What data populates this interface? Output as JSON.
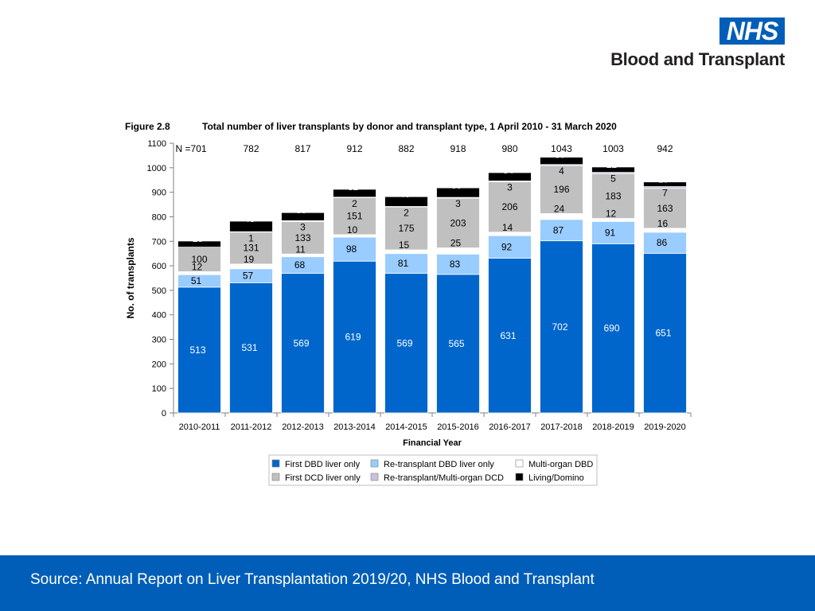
{
  "logo": {
    "nhs": "NHS",
    "org": "Blood and Transplant"
  },
  "footer": {
    "source": "Source: Annual Report on Liver Transplantation 2019/20, NHS Blood and Transplant"
  },
  "chart_data": {
    "type": "bar",
    "stacked": true,
    "figure_label": "Figure 2.8",
    "title": "Total number of liver transplants by donor and transplant type, 1 April 2010 - 31 March 2020",
    "xlabel": "Financial Year",
    "ylabel": "No. of transplants",
    "ylim": [
      0,
      1100
    ],
    "yticks": [
      0,
      100,
      200,
      300,
      400,
      500,
      600,
      700,
      800,
      900,
      1000,
      1100
    ],
    "categories": [
      "2010-2011",
      "2011-2012",
      "2012-2013",
      "2013-2014",
      "2014-2015",
      "2015-2016",
      "2016-2017",
      "2017-2018",
      "2018-2019",
      "2019-2020"
    ],
    "totals_prefix": "N =",
    "totals": [
      701,
      782,
      817,
      912,
      882,
      918,
      980,
      1043,
      1003,
      942
    ],
    "series": [
      {
        "name": "First DBD liver only",
        "color": "#0066cc",
        "label_color": "#ffffff",
        "values": [
          513,
          531,
          569,
          619,
          569,
          565,
          631,
          702,
          690,
          651
        ]
      },
      {
        "name": "Re-transplant DBD liver only",
        "color": "#99ccff",
        "label_color": "#000000",
        "values": [
          51,
          57,
          68,
          98,
          81,
          83,
          92,
          87,
          91,
          86
        ]
      },
      {
        "name": "Multi-organ DBD",
        "color": "#ffffff",
        "label_color": "#000000",
        "values": [
          12,
          19,
          11,
          10,
          15,
          25,
          14,
          24,
          12,
          16
        ]
      },
      {
        "name": "First DCD liver only",
        "color": "#c0c0c0",
        "label_color": "#000000",
        "values": [
          100,
          131,
          133,
          151,
          175,
          203,
          206,
          196,
          183,
          163
        ]
      },
      {
        "name": "Re-transplant/Multi-organ DCD",
        "color": "#ccc0da",
        "label_color": "#000000",
        "values": [
          0,
          1,
          3,
          2,
          2,
          3,
          3,
          4,
          5,
          7
        ]
      },
      {
        "name": "Living/Domino",
        "color": "#000000",
        "label_color": "#ffffff",
        "values": [
          25,
          43,
          33,
          32,
          40,
          39,
          34,
          30,
          22,
          19
        ]
      }
    ],
    "legend_position": "bottom-center",
    "grid": false
  }
}
